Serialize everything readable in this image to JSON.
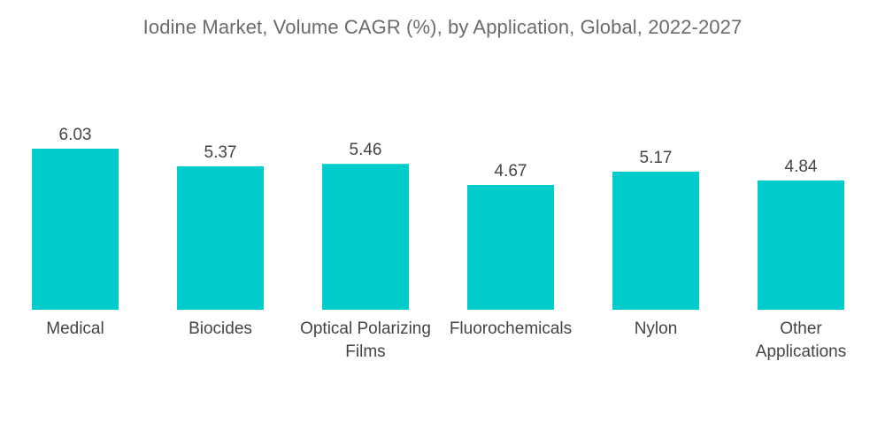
{
  "chart_data": {
    "type": "bar",
    "title": "Iodine Market, Volume CAGR (%), by Application, Global, 2022-2027",
    "categories": [
      [
        "Medical"
      ],
      [
        "Biocides"
      ],
      [
        "Optical Polarizing",
        "Films"
      ],
      [
        "Fluorochemicals"
      ],
      [
        "Nylon"
      ],
      [
        "Other",
        "Applications"
      ]
    ],
    "values": [
      6.03,
      5.37,
      5.46,
      4.67,
      5.17,
      4.84
    ],
    "value_labels": [
      "6.03",
      "5.37",
      "5.46",
      "4.67",
      "5.17",
      "4.84"
    ],
    "xlabel": "",
    "ylabel": "",
    "ylim": [
      0,
      6.03
    ],
    "grid": false,
    "legend": "none",
    "bar_color": "#00CCCC"
  }
}
